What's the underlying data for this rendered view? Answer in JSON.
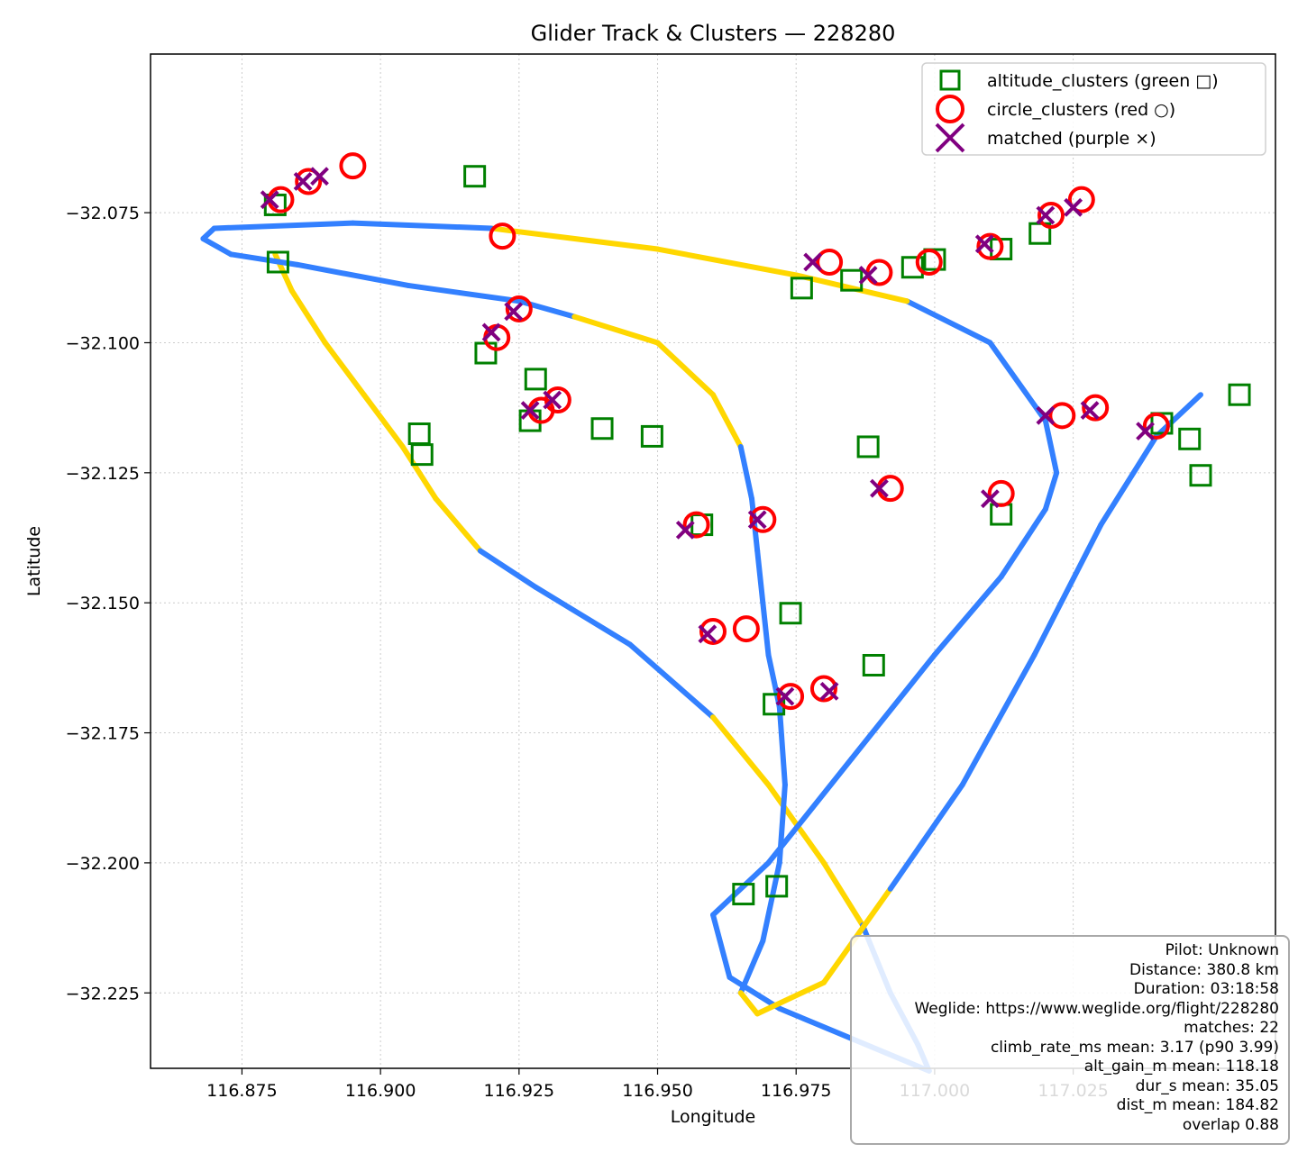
{
  "chart_data": {
    "type": "scatter",
    "title": "Glider Track & Clusters — 228280",
    "xlabel": "Longitude",
    "ylabel": "Latitude",
    "xlim": [
      116.8585,
      117.0615
    ],
    "ylim": [
      -32.2395,
      -32.0445
    ],
    "x_ticks": [
      "116.875",
      "116.900",
      "116.925",
      "116.950",
      "116.975",
      "117.000",
      "117.025"
    ],
    "y_ticks": [
      "−32.075",
      "−32.100",
      "−32.125",
      "−32.150",
      "−32.175",
      "−32.200",
      "−32.225"
    ],
    "grid": true,
    "legend_position": "top-right",
    "legend": [
      {
        "label": "altitude_clusters (green □)",
        "marker": "square",
        "color": "#008000"
      },
      {
        "label": "circle_clusters (red ○)",
        "marker": "circle",
        "color": "#ff0000"
      },
      {
        "label": "matched (purple ×)",
        "marker": "x",
        "color": "#800080"
      }
    ],
    "track_colors": {
      "glide": "#3380ff",
      "climb": "#ffd700"
    },
    "track": [
      [
        116.881,
        -32.083
      ],
      [
        116.884,
        -32.09
      ],
      [
        116.89,
        -32.1
      ],
      [
        116.897,
        -32.11
      ],
      [
        116.904,
        -32.12
      ],
      [
        116.91,
        -32.13
      ],
      [
        116.918,
        -32.14
      ],
      [
        116.928,
        -32.147
      ],
      [
        116.945,
        -32.158
      ],
      [
        116.96,
        -32.172
      ],
      [
        116.97,
        -32.185
      ],
      [
        116.98,
        -32.2
      ],
      [
        116.987,
        -32.212
      ],
      [
        116.992,
        -32.225
      ],
      [
        116.997,
        -32.235
      ],
      [
        116.999,
        -32.24
      ],
      [
        116.972,
        -32.228
      ],
      [
        116.963,
        -32.222
      ],
      [
        116.96,
        -32.21
      ],
      [
        116.97,
        -32.2
      ],
      [
        116.985,
        -32.18
      ],
      [
        117.0,
        -32.16
      ],
      [
        117.012,
        -32.145
      ],
      [
        117.02,
        -32.132
      ],
      [
        117.022,
        -32.125
      ],
      [
        117.02,
        -32.115
      ],
      [
        117.01,
        -32.1
      ],
      [
        116.995,
        -32.092
      ],
      [
        116.975,
        -32.087
      ],
      [
        116.95,
        -32.082
      ],
      [
        116.92,
        -32.078
      ],
      [
        116.895,
        -32.077
      ],
      [
        116.87,
        -32.078
      ],
      [
        116.868,
        -32.08
      ],
      [
        116.873,
        -32.083
      ],
      [
        116.885,
        -32.085
      ],
      [
        116.905,
        -32.089
      ],
      [
        116.925,
        -32.092
      ],
      [
        116.935,
        -32.095
      ],
      [
        116.95,
        -32.1
      ],
      [
        116.96,
        -32.11
      ],
      [
        116.965,
        -32.12
      ],
      [
        116.967,
        -32.13
      ],
      [
        116.968,
        -32.14
      ],
      [
        116.969,
        -32.15
      ],
      [
        116.97,
        -32.16
      ],
      [
        116.972,
        -32.17
      ],
      [
        116.973,
        -32.185
      ],
      [
        116.972,
        -32.2
      ],
      [
        116.969,
        -32.215
      ],
      [
        116.965,
        -32.225
      ],
      [
        116.968,
        -32.229
      ],
      [
        116.98,
        -32.223
      ],
      [
        116.992,
        -32.205
      ],
      [
        117.005,
        -32.185
      ],
      [
        117.018,
        -32.16
      ],
      [
        117.03,
        -32.135
      ],
      [
        117.04,
        -32.118
      ],
      [
        117.046,
        -32.112
      ],
      [
        117.048,
        -32.11
      ]
    ],
    "climb_track_indices": [
      [
        0,
        6
      ],
      [
        9,
        12
      ],
      [
        27,
        30
      ],
      [
        38,
        41
      ],
      [
        50,
        53
      ]
    ],
    "altitude_clusters": [
      [
        116.881,
        -32.0735
      ],
      [
        116.8815,
        -32.0845
      ],
      [
        116.917,
        -32.068
      ],
      [
        116.919,
        -32.102
      ],
      [
        116.928,
        -32.107
      ],
      [
        116.927,
        -32.115
      ],
      [
        116.907,
        -32.1175
      ],
      [
        116.9075,
        -32.1215
      ],
      [
        116.94,
        -32.1165
      ],
      [
        116.949,
        -32.118
      ],
      [
        116.976,
        -32.0895
      ],
      [
        116.985,
        -32.088
      ],
      [
        116.996,
        -32.0855
      ],
      [
        117.0,
        -32.084
      ],
      [
        117.012,
        -32.082
      ],
      [
        117.019,
        -32.079
      ],
      [
        116.988,
        -32.12
      ],
      [
        117.041,
        -32.1155
      ],
      [
        117.046,
        -32.1185
      ],
      [
        117.048,
        -32.1255
      ],
      [
        117.055,
        -32.11
      ],
      [
        117.012,
        -32.133
      ],
      [
        116.974,
        -32.152
      ],
      [
        116.989,
        -32.162
      ],
      [
        116.971,
        -32.1695
      ],
      [
        116.958,
        -32.135
      ],
      [
        116.9655,
        -32.206
      ],
      [
        116.9715,
        -32.2045
      ]
    ],
    "circle_clusters": [
      [
        116.882,
        -32.0725
      ],
      [
        116.887,
        -32.069
      ],
      [
        116.895,
        -32.066
      ],
      [
        116.922,
        -32.0795
      ],
      [
        116.921,
        -32.099
      ],
      [
        116.925,
        -32.0935
      ],
      [
        116.929,
        -32.113
      ],
      [
        116.932,
        -32.111
      ],
      [
        116.981,
        -32.0845
      ],
      [
        116.99,
        -32.0865
      ],
      [
        116.999,
        -32.0845
      ],
      [
        117.01,
        -32.0815
      ],
      [
        117.021,
        -32.0755
      ],
      [
        117.0265,
        -32.0725
      ],
      [
        117.023,
        -32.114
      ],
      [
        117.029,
        -32.1125
      ],
      [
        117.04,
        -32.116
      ],
      [
        117.012,
        -32.129
      ],
      [
        116.992,
        -32.128
      ],
      [
        116.957,
        -32.135
      ],
      [
        116.969,
        -32.134
      ],
      [
        116.96,
        -32.1555
      ],
      [
        116.966,
        -32.155
      ],
      [
        116.974,
        -32.168
      ],
      [
        116.98,
        -32.1665
      ]
    ],
    "matched": [
      [
        116.88,
        -32.0725
      ],
      [
        116.886,
        -32.069
      ],
      [
        116.889,
        -32.068
      ],
      [
        116.92,
        -32.098
      ],
      [
        116.924,
        -32.094
      ],
      [
        116.927,
        -32.113
      ],
      [
        116.931,
        -32.111
      ],
      [
        116.978,
        -32.0845
      ],
      [
        116.988,
        -32.087
      ],
      [
        117.009,
        -32.081
      ],
      [
        117.02,
        -32.0755
      ],
      [
        117.025,
        -32.074
      ],
      [
        117.02,
        -32.114
      ],
      [
        117.028,
        -32.113
      ],
      [
        117.038,
        -32.117
      ],
      [
        117.01,
        -32.13
      ],
      [
        116.99,
        -32.128
      ],
      [
        116.955,
        -32.136
      ],
      [
        116.968,
        -32.134
      ],
      [
        116.959,
        -32.156
      ],
      [
        116.973,
        -32.168
      ],
      [
        116.981,
        -32.167
      ]
    ]
  },
  "info": {
    "pilot": "Pilot: Unknown",
    "distance": "Distance: 380.8 km",
    "duration": "Duration: 03:18:58",
    "weglide": "Weglide: https://www.weglide.org/flight/228280",
    "matches": "matches: 22",
    "climb_rate": "climb_rate_ms mean: 3.17 (p90 3.99)",
    "alt_gain": "alt_gain_m mean: 118.18",
    "dur": "dur_s mean: 35.05",
    "dist": "dist_m mean: 184.82",
    "overlap": "overlap 0.88"
  }
}
